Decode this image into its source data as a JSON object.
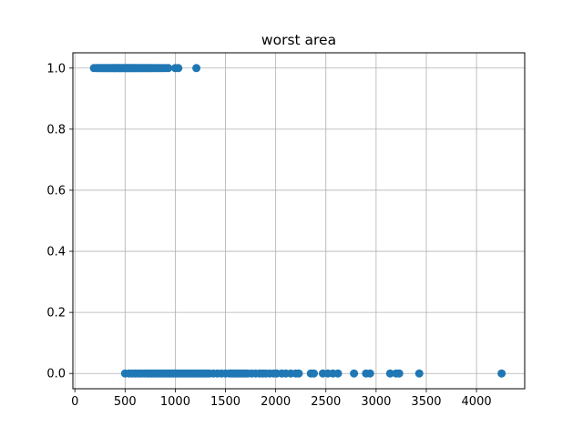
{
  "chart_data": {
    "type": "scatter",
    "title": "worst area",
    "xlabel": "",
    "ylabel": "",
    "xlim": [
      -20,
      4480
    ],
    "ylim": [
      -0.05,
      1.05
    ],
    "xticks": [
      0,
      500,
      1000,
      1500,
      2000,
      2500,
      3000,
      3500,
      4000
    ],
    "xtick_labels": [
      "0",
      "500",
      "1000",
      "1500",
      "2000",
      "2500",
      "3000",
      "3500",
      "4000"
    ],
    "yticks": [
      0.0,
      0.2,
      0.4,
      0.6,
      0.8,
      1.0
    ],
    "ytick_labels": [
      "0.0",
      "0.2",
      "0.4",
      "0.6",
      "0.8",
      "1.0"
    ],
    "grid": true,
    "color": "#1f77b4",
    "series": [
      {
        "y": 1,
        "x": [
          190,
          215,
          235,
          250,
          265,
          280,
          295,
          310,
          320,
          335,
          350,
          360,
          375,
          390,
          400,
          410,
          425,
          440,
          450,
          460,
          475,
          490,
          500,
          510,
          520,
          530,
          545,
          555,
          565,
          580,
          590,
          600,
          615,
          625,
          640,
          650,
          665,
          680,
          695,
          710,
          720,
          735,
          750,
          765,
          780,
          800,
          820,
          840,
          860,
          880,
          905,
          930,
          1000,
          1030,
          1210
        ]
      },
      {
        "y": 0,
        "x": [
          500,
          540,
          570,
          600,
          630,
          660,
          690,
          720,
          740,
          760,
          780,
          800,
          820,
          840,
          860,
          880,
          900,
          920,
          940,
          960,
          980,
          1000,
          1020,
          1040,
          1060,
          1080,
          1100,
          1120,
          1140,
          1160,
          1180,
          1200,
          1220,
          1240,
          1260,
          1280,
          1300,
          1320,
          1340,
          1380,
          1420,
          1460,
          1500,
          1540,
          1560,
          1580,
          1600,
          1620,
          1640,
          1660,
          1680,
          1700,
          1720,
          1760,
          1800,
          1840,
          1870,
          1900,
          1940,
          1980,
          2010,
          2060,
          2100,
          2150,
          2200,
          2230,
          2350,
          2380,
          2470,
          2520,
          2570,
          2620,
          2780,
          2900,
          2940,
          3140,
          3200,
          3230,
          3430,
          4250
        ]
      }
    ]
  }
}
